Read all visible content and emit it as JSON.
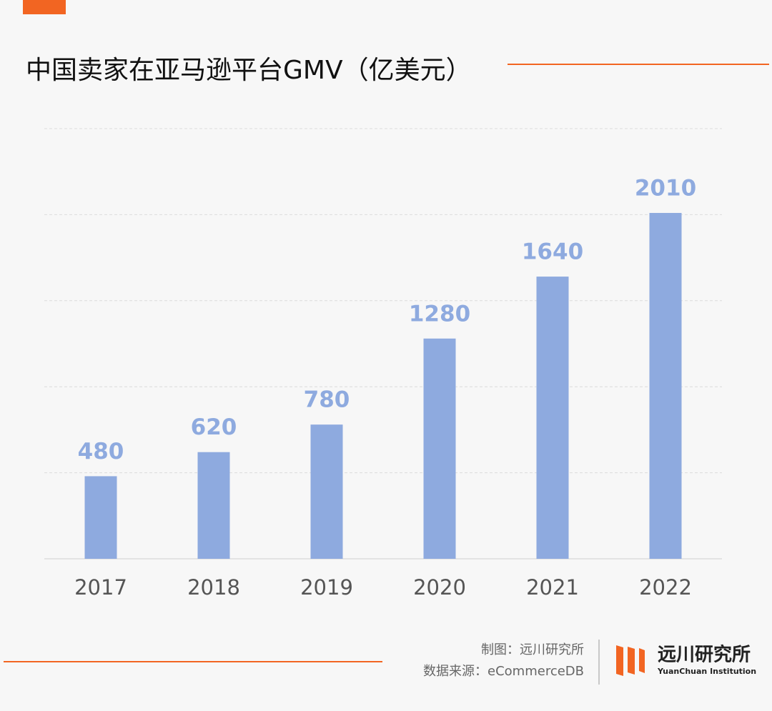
{
  "chart_data": {
    "type": "bar",
    "title": "中国卖家在亚马逊平台GMV（亿美元）",
    "categories": [
      "2017",
      "2018",
      "2019",
      "2020",
      "2021",
      "2022"
    ],
    "values": [
      480,
      620,
      780,
      1280,
      1640,
      2010
    ],
    "color": "#8eaadf",
    "ylim": [
      0,
      2500
    ],
    "yticks": [
      0,
      500,
      1000,
      1500,
      2000,
      2500
    ],
    "grid": true
  },
  "credit": "制图：远川研究所",
  "source": "数据来源：eCommerceDB",
  "brand": {
    "name": "远川研究所",
    "subtitle": "YuanChuan Institution"
  }
}
